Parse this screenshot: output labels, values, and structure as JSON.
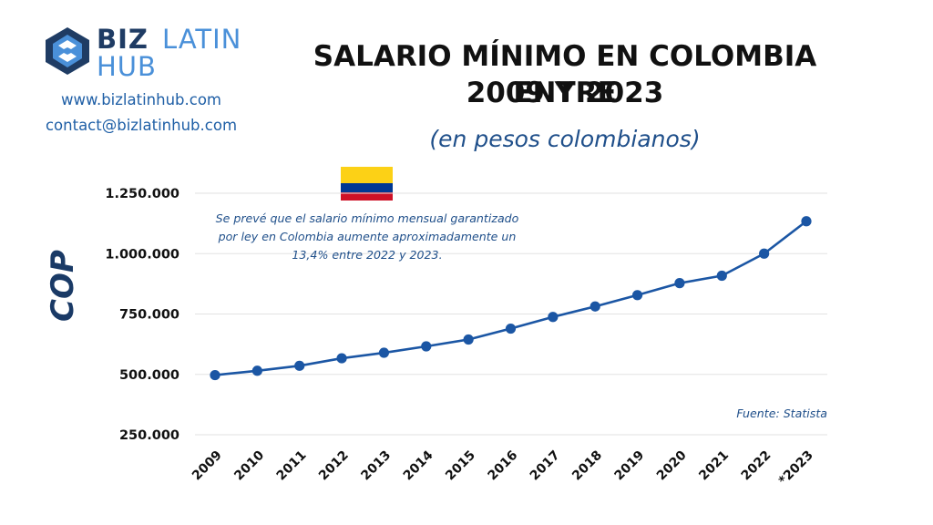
{
  "brand": {
    "name_part1": "BIZ",
    "name_part2": "LATIN",
    "name_part3": "HUB",
    "website": "www.bizlatinhub.com",
    "email": "contact@bizlatinhub.com",
    "colors": {
      "dark": "#1f3c64",
      "light": "#4a90d9"
    }
  },
  "flag": {
    "colors": [
      "#fcd116",
      "#003893",
      "#ce1126"
    ]
  },
  "chart_data": {
    "type": "line",
    "title": "SALARIO MÍNIMO EN COLOMBIA ENTRE 2009 Y 2023",
    "title_lines": [
      "SALARIO MÍNIMO EN COLOMBIA ENTRE",
      "2009 Y 2023"
    ],
    "subtitle": "(en pesos colombianos)",
    "ylabel": "COP",
    "xlabel": "",
    "categories": [
      "2009",
      "2010",
      "2011",
      "2012",
      "2013",
      "2014",
      "2015",
      "2016",
      "2017",
      "2018",
      "2019",
      "2020",
      "2021",
      "2022",
      "*2023"
    ],
    "values": [
      496900,
      515000,
      535600,
      566700,
      589500,
      616000,
      644350,
      689455,
      737717,
      781242,
      828116,
      877803,
      908526,
      1000000,
      1134000
    ],
    "ylim": [
      250000,
      1250000
    ],
    "yticks": [
      250000,
      500000,
      750000,
      1000000,
      1250000
    ],
    "ytick_labels": [
      "250.000",
      "500.000",
      "750.000",
      "1.000.000",
      "1.250.000"
    ],
    "grid": true,
    "line_color": "#1b56a4",
    "annotations": {
      "note": "Se prevé que el salario mínimo mensual garantizado por ley en Colombia aumente aproximadamente un 13,4% entre 2022 y 2023.",
      "source": "Fuente: Statista"
    }
  }
}
